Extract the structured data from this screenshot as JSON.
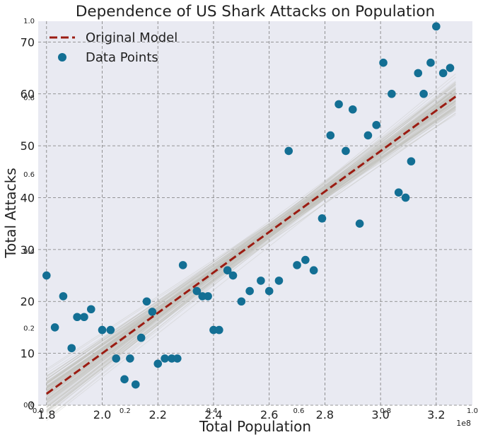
{
  "chart_data": {
    "type": "scatter",
    "title": "Dependence of US Shark Attacks on Population",
    "xlabel": "Total Population",
    "ylabel": "Total Attacks",
    "x_offset_label": "1e8",
    "xlim": [
      1.77,
      3.33
    ],
    "ylim": [
      0,
      74
    ],
    "x_ticks": [
      1.8,
      2.0,
      2.2,
      2.4,
      2.6,
      2.8,
      3.0,
      3.2
    ],
    "x_tick_labels": [
      "1.8",
      "2.0",
      "2.2",
      "2.4",
      "2.6",
      "2.8",
      "3.0",
      "3.2"
    ],
    "y_ticks": [
      0,
      10,
      20,
      30,
      40,
      50,
      60,
      70
    ],
    "y_tick_labels": [
      "0",
      "10",
      "20",
      "30",
      "40",
      "50",
      "60",
      "70"
    ],
    "ghost_x_ticks": [
      "0.0",
      "0.2",
      "0.4",
      "0.6",
      "0.8",
      "1.0"
    ],
    "ghost_y_ticks": [
      "0.0",
      "0.2",
      "0.4",
      "0.6",
      "0.8",
      "1.0"
    ],
    "grid": true,
    "legend_position": "top-left",
    "legend": [
      {
        "label": "Original Model",
        "kind": "dashed-line",
        "color": "#9b1c12"
      },
      {
        "label": "Data Points",
        "kind": "marker",
        "color": "#136f94"
      }
    ],
    "colors": {
      "plot_background": "#e9eaf2",
      "model_line": "#9b1c12",
      "points": "#136f94",
      "posterior_lines": "#c3c4be",
      "grid": "#7a7a7a"
    },
    "model_line": {
      "x": [
        1.8,
        3.27
      ],
      "y": [
        2.2,
        59.5
      ]
    },
    "posterior_band": {
      "x_start": 1.8,
      "x_end": 3.27,
      "y_start_range": [
        -4,
        8
      ],
      "y_end_range": [
        52,
        67
      ],
      "count": 120
    },
    "points": [
      {
        "x": 1.8,
        "y": 25
      },
      {
        "x": 1.83,
        "y": 15
      },
      {
        "x": 1.86,
        "y": 21
      },
      {
        "x": 1.89,
        "y": 11
      },
      {
        "x": 1.91,
        "y": 17
      },
      {
        "x": 1.935,
        "y": 17
      },
      {
        "x": 1.96,
        "y": 18.5
      },
      {
        "x": 2.0,
        "y": 14.5
      },
      {
        "x": 2.03,
        "y": 14.5
      },
      {
        "x": 2.05,
        "y": 9
      },
      {
        "x": 2.08,
        "y": 5
      },
      {
        "x": 2.1,
        "y": 9
      },
      {
        "x": 2.12,
        "y": 4
      },
      {
        "x": 2.14,
        "y": 13
      },
      {
        "x": 2.16,
        "y": 20
      },
      {
        "x": 2.18,
        "y": 18
      },
      {
        "x": 2.2,
        "y": 8
      },
      {
        "x": 2.225,
        "y": 9
      },
      {
        "x": 2.25,
        "y": 9
      },
      {
        "x": 2.27,
        "y": 9
      },
      {
        "x": 2.29,
        "y": 27
      },
      {
        "x": 2.34,
        "y": 22
      },
      {
        "x": 2.36,
        "y": 21
      },
      {
        "x": 2.38,
        "y": 21
      },
      {
        "x": 2.4,
        "y": 14.5
      },
      {
        "x": 2.42,
        "y": 14.5
      },
      {
        "x": 2.45,
        "y": 26
      },
      {
        "x": 2.47,
        "y": 25
      },
      {
        "x": 2.5,
        "y": 20
      },
      {
        "x": 2.53,
        "y": 22
      },
      {
        "x": 2.57,
        "y": 24
      },
      {
        "x": 2.6,
        "y": 22
      },
      {
        "x": 2.635,
        "y": 24
      },
      {
        "x": 2.67,
        "y": 49
      },
      {
        "x": 2.7,
        "y": 27
      },
      {
        "x": 2.73,
        "y": 28
      },
      {
        "x": 2.76,
        "y": 26
      },
      {
        "x": 2.79,
        "y": 36
      },
      {
        "x": 2.82,
        "y": 52
      },
      {
        "x": 2.85,
        "y": 58
      },
      {
        "x": 2.875,
        "y": 49
      },
      {
        "x": 2.9,
        "y": 57
      },
      {
        "x": 2.925,
        "y": 35
      },
      {
        "x": 2.955,
        "y": 52
      },
      {
        "x": 2.985,
        "y": 54
      },
      {
        "x": 3.01,
        "y": 66
      },
      {
        "x": 3.04,
        "y": 60
      },
      {
        "x": 3.065,
        "y": 41
      },
      {
        "x": 3.09,
        "y": 40
      },
      {
        "x": 3.11,
        "y": 47
      },
      {
        "x": 3.135,
        "y": 64
      },
      {
        "x": 3.155,
        "y": 60
      },
      {
        "x": 3.18,
        "y": 66
      },
      {
        "x": 3.2,
        "y": 73
      },
      {
        "x": 3.225,
        "y": 64
      },
      {
        "x": 3.25,
        "y": 65
      }
    ]
  }
}
